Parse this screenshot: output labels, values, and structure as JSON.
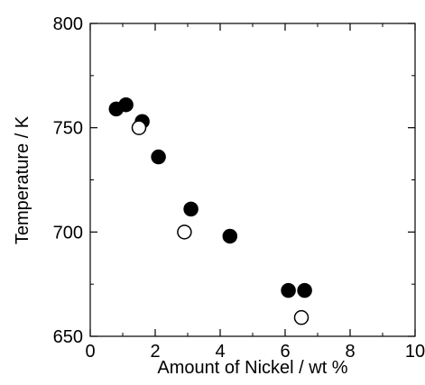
{
  "chart_data": {
    "type": "scatter",
    "title": "",
    "xlabel": "Amount of Nickel / wt %",
    "ylabel": "Temperature / K",
    "xlim": [
      0,
      10
    ],
    "ylim": [
      650,
      800
    ],
    "xticks": [
      0,
      2,
      4,
      6,
      8,
      10
    ],
    "yticks": [
      650,
      700,
      750,
      800
    ],
    "xtick_labels": [
      "0",
      "2",
      "4",
      "6",
      "8",
      "10"
    ],
    "ytick_labels": [
      "650",
      "700",
      "750",
      "800"
    ],
    "grid": false,
    "legend": "none",
    "series": [
      {
        "marker": "filled-circle",
        "color": "#000000",
        "points": [
          {
            "x": 0.8,
            "y": 759
          },
          {
            "x": 1.1,
            "y": 761
          },
          {
            "x": 1.6,
            "y": 753
          },
          {
            "x": 2.1,
            "y": 736
          },
          {
            "x": 3.1,
            "y": 711
          },
          {
            "x": 4.3,
            "y": 698
          },
          {
            "x": 6.1,
            "y": 672
          },
          {
            "x": 6.6,
            "y": 672
          }
        ]
      },
      {
        "marker": "open-circle",
        "color": "#000000",
        "points": [
          {
            "x": 1.5,
            "y": 750
          },
          {
            "x": 2.9,
            "y": 700
          },
          {
            "x": 6.5,
            "y": 659
          }
        ]
      }
    ]
  }
}
